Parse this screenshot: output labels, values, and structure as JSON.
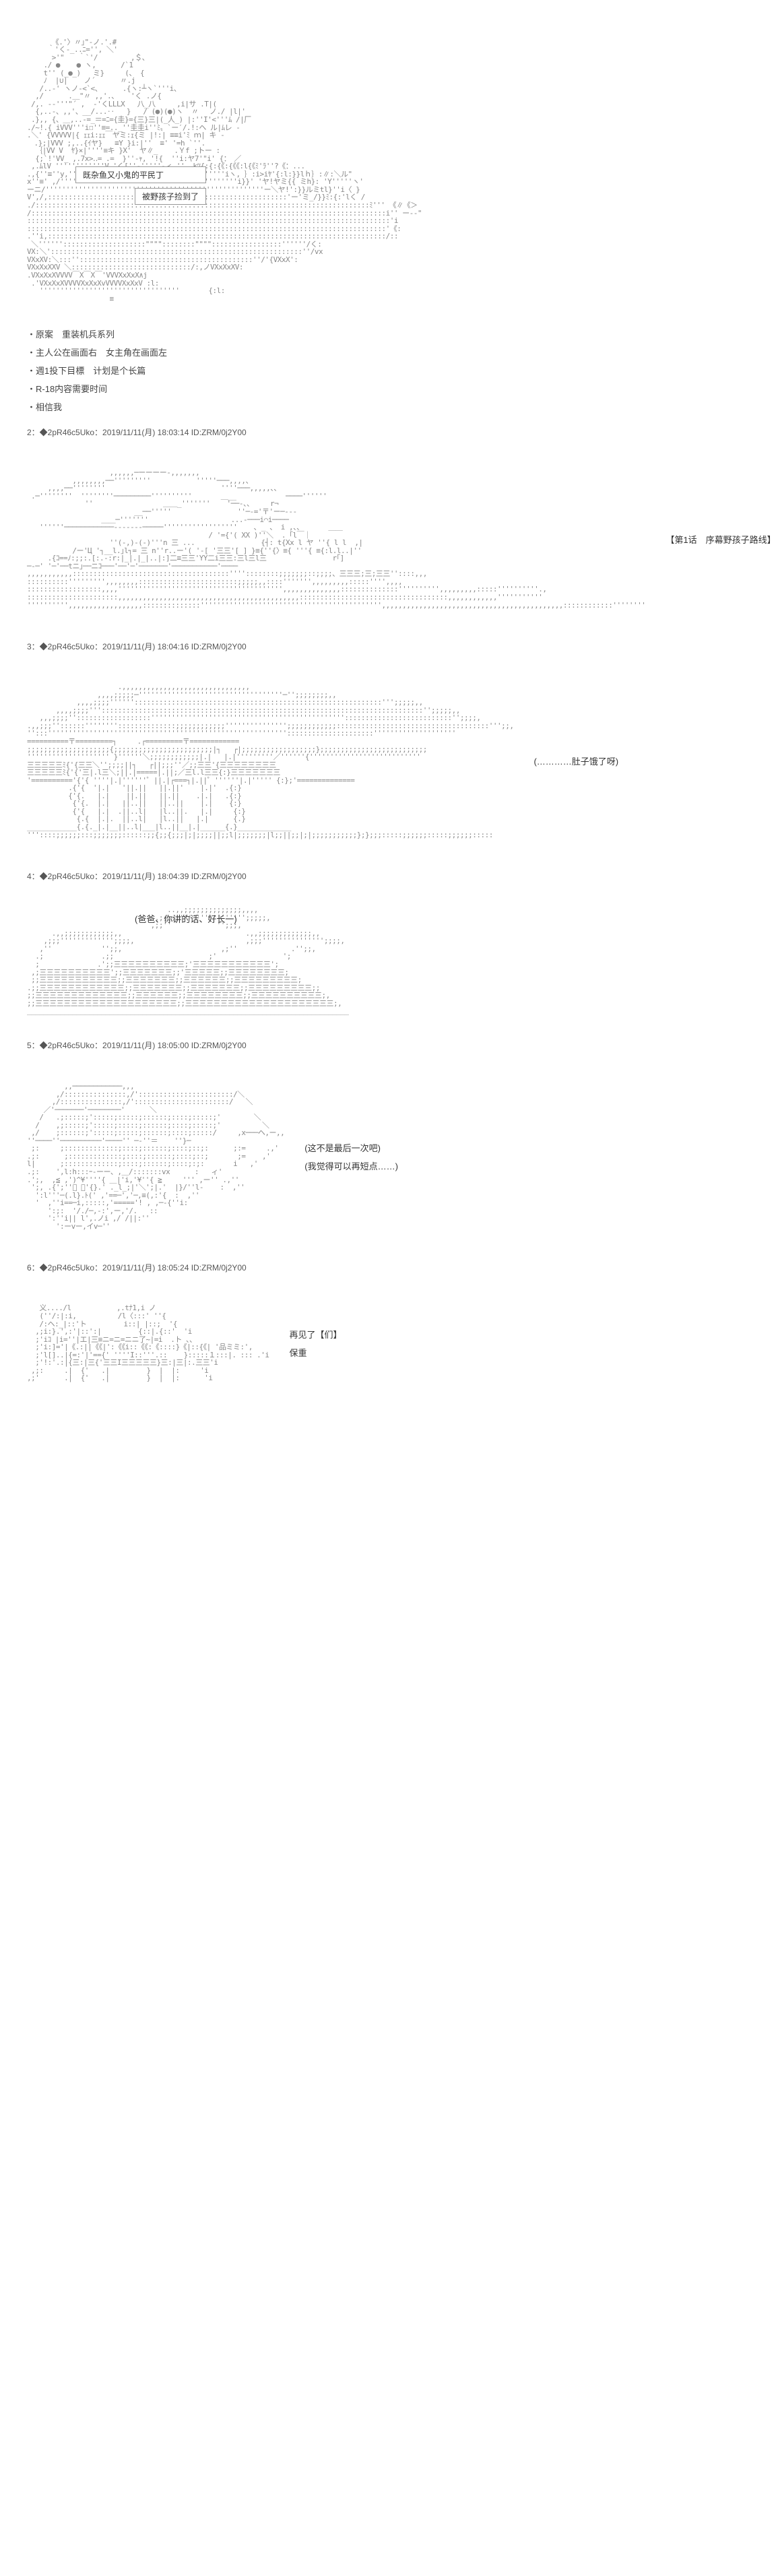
{
  "colors": {
    "background": "#ffffff",
    "text": "#333333",
    "ascii": "#888888",
    "meta": "#555555",
    "bubbleBorder": "#999999"
  },
  "typography": {
    "bodySize": 13,
    "asciiSize": 11,
    "metaSize": 12
  },
  "header": {
    "bubble1": "既杂鱼又小鬼的平民丁",
    "bubble2": "被野孩子捡到了"
  },
  "notes": {
    "n1": "・原案　重装机兵系列",
    "n2": "・主人公在画面右　女主角在画面左",
    "n3": "・週1投下目標　计划是个长篇",
    "n4": "・R-18内容需要时间",
    "n5": "・相信我"
  },
  "posts": {
    "p2": "2：◆2pR46c5Uko：2019/11/11(月) 18:03:14 ID:ZRM/0j2Y00",
    "p3": "3：◆2pR46c5Uko：2019/11/11(月) 18:04:16 ID:ZRM/0j2Y00",
    "p4": "4：◆2pR46c5Uko：2019/11/11(月) 18:04:39 ID:ZRM/0j2Y00",
    "p5": "5：◆2pR46c5Uko：2019/11/11(月) 18:05:00 ID:ZRM/0j2Y00",
    "p6": "6：◆2pR46c5Uko：2019/11/11(月) 18:05:24 ID:ZRM/0j2Y00"
  },
  "captions": {
    "panel2": "【第1话　序幕野孩子路线】",
    "panel3": "(…………肚子饿了呀)",
    "panel4": "(爸爸、你讲的话、好长一)",
    "panel5a": "(这不是最后一次吧)",
    "panel5b": "(我觉得可以再短点……)",
    "panel6a": "再见了【们】",
    "panel6b": "保重"
  }
}
